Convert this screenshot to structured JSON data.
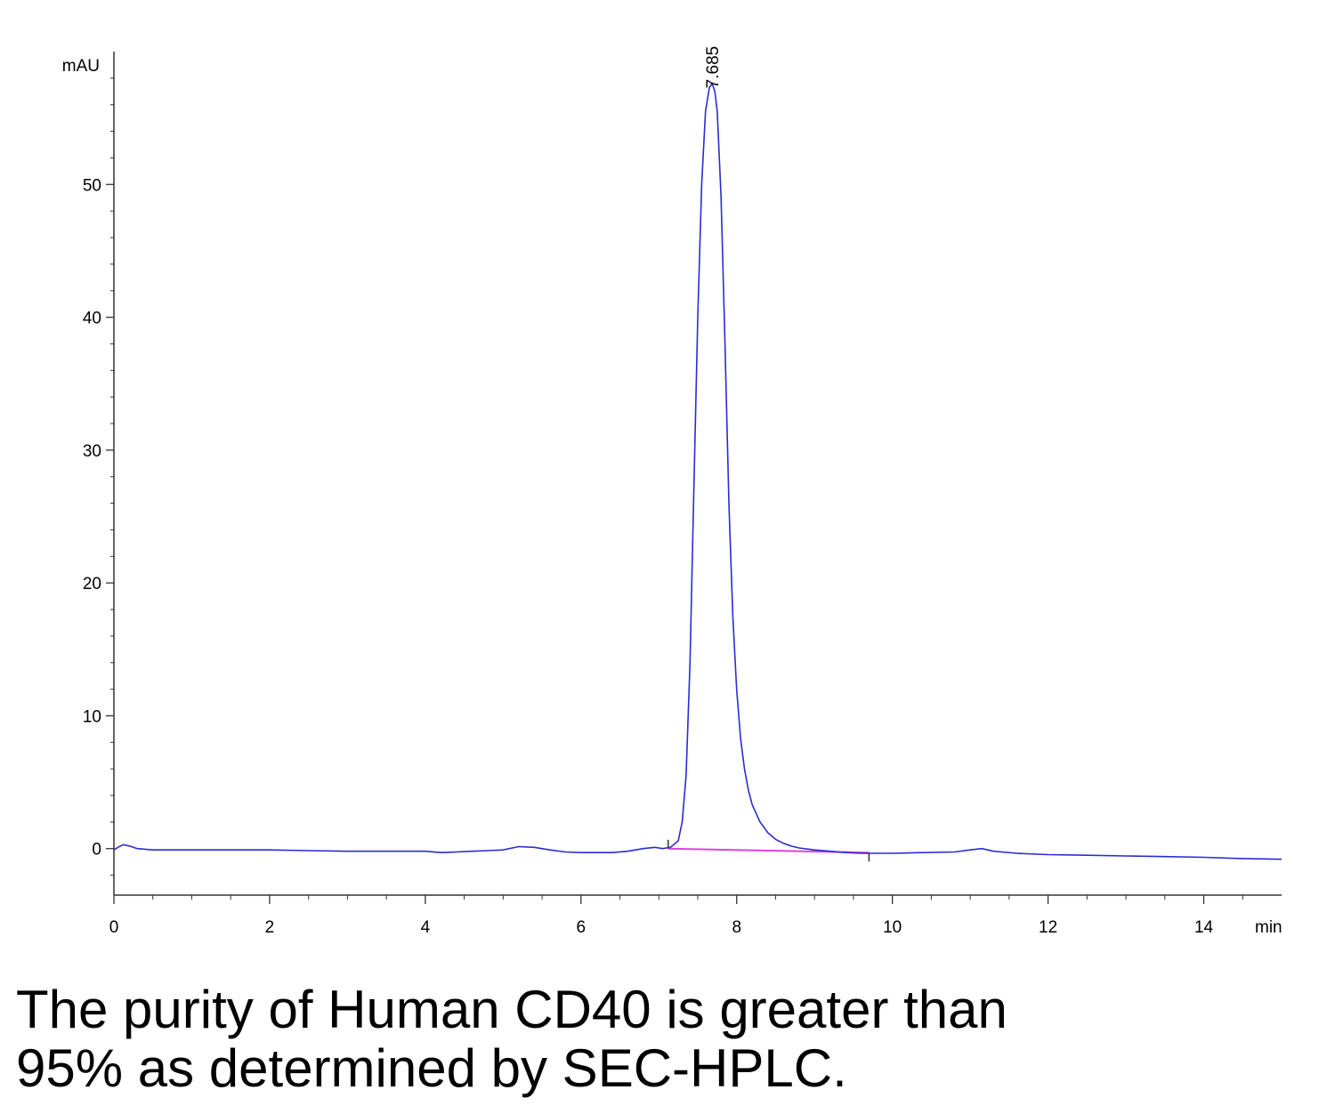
{
  "caption": {
    "line1": "The purity of Human CD40 is greater than",
    "line2": "95% as determined by SEC-HPLC."
  },
  "chart_data": {
    "type": "line",
    "xlabel": "min",
    "ylabel": "mAU",
    "xlim": [
      0,
      15
    ],
    "ylim": [
      -3.5,
      60
    ],
    "x_ticks": [
      0,
      2,
      4,
      6,
      8,
      10,
      12,
      14
    ],
    "y_ticks": [
      0,
      10,
      20,
      30,
      40,
      50
    ],
    "grid": false,
    "colors": {
      "trace": "#2b2bd6",
      "baseline": "#e040e0",
      "axis": "#333333"
    },
    "peak": {
      "label": "7.685",
      "x": 7.685,
      "y": 57.5
    },
    "baseline": {
      "x": [
        7.12,
        9.7
      ],
      "y": [
        0.0,
        -0.3
      ]
    },
    "series": [
      {
        "x": [
          0,
          0.05,
          0.12,
          0.2,
          0.3,
          0.5,
          1.0,
          1.5,
          2.0,
          2.5,
          3.0,
          3.5,
          4.0,
          4.2,
          4.4,
          4.6,
          4.8,
          5.0,
          5.2,
          5.4,
          5.6,
          5.8,
          6.0,
          6.2,
          6.4,
          6.6,
          6.8,
          6.95,
          7.05,
          7.15,
          7.25,
          7.3,
          7.35,
          7.4,
          7.45,
          7.5,
          7.55,
          7.6,
          7.65,
          7.685,
          7.72,
          7.75,
          7.8,
          7.85,
          7.9,
          7.95,
          8.0,
          8.05,
          8.1,
          8.15,
          8.2,
          8.3,
          8.4,
          8.5,
          8.6,
          8.7,
          8.8,
          9.0,
          9.2,
          9.4,
          9.6,
          9.8,
          10.0,
          10.4,
          10.8,
          11.0,
          11.15,
          11.3,
          11.6,
          12.0,
          12.5,
          13.0,
          13.5,
          14.0,
          14.5,
          15.0
        ],
        "y": [
          -0.1,
          0.1,
          0.3,
          0.2,
          0.0,
          -0.1,
          -0.1,
          -0.1,
          -0.1,
          -0.15,
          -0.2,
          -0.2,
          -0.2,
          -0.3,
          -0.25,
          -0.2,
          -0.15,
          -0.1,
          0.15,
          0.1,
          -0.1,
          -0.25,
          -0.3,
          -0.3,
          -0.3,
          -0.2,
          0.0,
          0.1,
          0.0,
          0.1,
          0.6,
          2.0,
          5.5,
          14.0,
          27.0,
          40.0,
          50.0,
          55.5,
          57.3,
          57.6,
          57.0,
          55.5,
          49.0,
          38.0,
          26.0,
          17.5,
          12.0,
          8.3,
          6.0,
          4.4,
          3.3,
          2.0,
          1.2,
          0.7,
          0.4,
          0.2,
          0.05,
          -0.1,
          -0.2,
          -0.3,
          -0.35,
          -0.35,
          -0.35,
          -0.3,
          -0.25,
          -0.1,
          0.0,
          -0.2,
          -0.35,
          -0.45,
          -0.5,
          -0.55,
          -0.6,
          -0.65,
          -0.75,
          -0.8
        ]
      }
    ]
  }
}
